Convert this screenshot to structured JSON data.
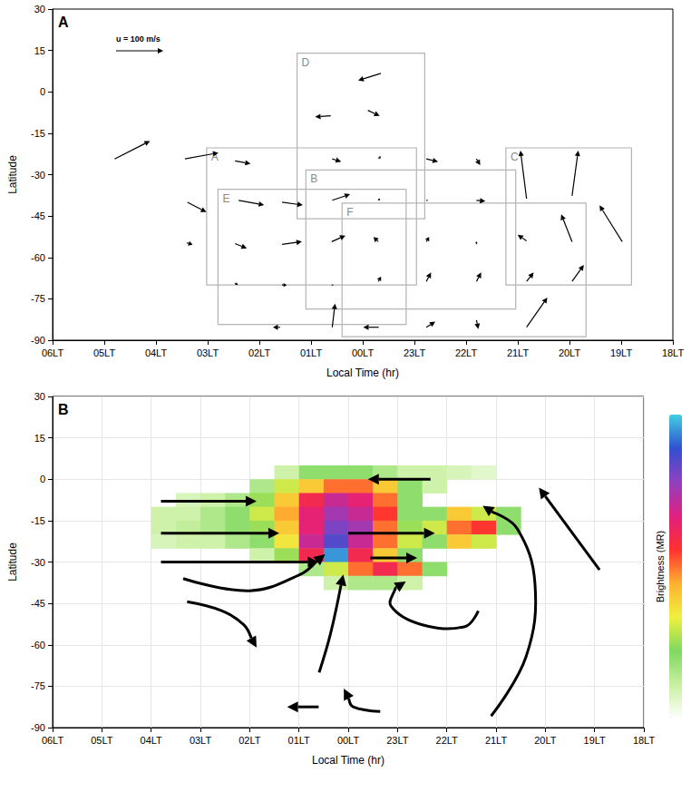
{
  "chart_data": [
    {
      "type": "vector",
      "panel": "A",
      "x_label": "Local Time (hr)",
      "y_label": "Latitude",
      "grid": false,
      "xlim": [
        18,
        30
      ],
      "xticks": [
        {
          "value": 30,
          "label": "06LT"
        },
        {
          "value": 29,
          "label": "05LT"
        },
        {
          "value": 28,
          "label": "04LT"
        },
        {
          "value": 27,
          "label": "03LT"
        },
        {
          "value": 26,
          "label": "02LT"
        },
        {
          "value": 25,
          "label": "01LT"
        },
        {
          "value": 24,
          "label": "00LT"
        },
        {
          "value": 23,
          "label": "23LT"
        },
        {
          "value": 22,
          "label": "22LT"
        },
        {
          "value": 21,
          "label": "21LT"
        },
        {
          "value": 20,
          "label": "20LT"
        },
        {
          "value": 19,
          "label": "19LT"
        },
        {
          "value": 18,
          "label": "18LT"
        }
      ],
      "ylim": [
        -90,
        30
      ],
      "yticks": [
        -90,
        -75,
        -60,
        -45,
        -30,
        -15,
        0,
        15,
        30
      ],
      "scale": {
        "label": "u = 100 m/s",
        "value": 100
      },
      "boxes": [
        {
          "label": "A",
          "x": [
            27.02,
            22.96
          ],
          "lat": [
            -70,
            -20.3
          ]
        },
        {
          "label": "B",
          "x": [
            25.1,
            21.04
          ],
          "lat": [
            -78.7,
            -28.3
          ]
        },
        {
          "label": "C",
          "x": [
            21.23,
            18.8
          ],
          "lat": [
            -70,
            -20.3
          ]
        },
        {
          "label": "D",
          "x": [
            25.27,
            22.8
          ],
          "lat": [
            -46,
            14
          ]
        },
        {
          "label": "E",
          "x": [
            26.8,
            23.16
          ],
          "lat": [
            -84.3,
            -35.3
          ]
        },
        {
          "label": "F",
          "x": [
            24.4,
            19.68
          ],
          "lat": [
            -88.7,
            -40.3
          ]
        }
      ],
      "vectors": [
        [
          28.8,
          -24.3,
          75,
          38
        ],
        [
          27.44,
          -24.3,
          71,
          13
        ],
        [
          27.39,
          -40,
          40,
          -21
        ],
        [
          27.4,
          -54.7,
          12,
          -4
        ],
        [
          26.47,
          -25,
          33,
          -6
        ],
        [
          26.4,
          -39.3,
          54,
          -10
        ],
        [
          26.47,
          -55,
          25,
          -10
        ],
        [
          26.47,
          -69.3,
          6,
          -4
        ],
        [
          25.6,
          -85.3,
          -15,
          0
        ],
        [
          25.56,
          -40,
          44,
          -6
        ],
        [
          25.56,
          -55.3,
          42,
          6
        ],
        [
          25.56,
          -70,
          10,
          0
        ],
        [
          24.59,
          -24.3,
          19,
          -6
        ],
        [
          24.59,
          -39.3,
          38,
          13
        ],
        [
          24.6,
          -54.3,
          29,
          13
        ],
        [
          24.6,
          -70,
          4,
          0
        ],
        [
          24.59,
          -85.3,
          6,
          50
        ],
        [
          24.62,
          -8.7,
          -33,
          -2
        ],
        [
          23.65,
          6.7,
          -48,
          -15
        ],
        [
          23.9,
          -6.7,
          25,
          -12
        ],
        [
          23.69,
          -24.3,
          4,
          6
        ],
        [
          23.7,
          -39.3,
          4,
          4
        ],
        [
          23.7,
          -54.3,
          -10,
          10
        ],
        [
          23.7,
          -68.7,
          6,
          10
        ],
        [
          23.69,
          -85.3,
          -33,
          0
        ],
        [
          22.77,
          -24.3,
          25,
          -6
        ],
        [
          22.77,
          -39.3,
          4,
          0
        ],
        [
          22.77,
          -54.3,
          6,
          10
        ],
        [
          22.77,
          -68.7,
          10,
          19
        ],
        [
          22.77,
          -85.3,
          19,
          12
        ],
        [
          21.8,
          -24.3,
          8,
          -13
        ],
        [
          21.8,
          -39.3,
          19,
          -2
        ],
        [
          21.8,
          -54.3,
          0,
          -6
        ],
        [
          21.8,
          -68.7,
          10,
          19
        ],
        [
          21.8,
          -82.7,
          4,
          -19
        ],
        [
          20.83,
          -38.7,
          -13,
          102
        ],
        [
          20.83,
          -54,
          -19,
          13
        ],
        [
          20.83,
          -68.7,
          15,
          19
        ],
        [
          20.83,
          -85.3,
          44,
          63
        ],
        [
          19.95,
          -37.7,
          13,
          96
        ],
        [
          19.95,
          -54.3,
          -23,
          58
        ],
        [
          19.95,
          -68.7,
          25,
          35
        ],
        [
          18.98,
          -54.3,
          -48,
          77
        ]
      ]
    },
    {
      "type": "heatmap",
      "panel": "B",
      "x_label": "Local Time (hr)",
      "y_label": "Latitude",
      "grid": true,
      "xlim": [
        18,
        30
      ],
      "xticks": [
        {
          "value": 30,
          "label": "06LT"
        },
        {
          "value": 29,
          "label": "05LT"
        },
        {
          "value": 28,
          "label": "04LT"
        },
        {
          "value": 27,
          "label": "03LT"
        },
        {
          "value": 26,
          "label": "02LT"
        },
        {
          "value": 25,
          "label": "01LT"
        },
        {
          "value": 24,
          "label": "00LT"
        },
        {
          "value": 23,
          "label": "23LT"
        },
        {
          "value": 22,
          "label": "22LT"
        },
        {
          "value": 21,
          "label": "21LT"
        },
        {
          "value": 20,
          "label": "20LT"
        },
        {
          "value": 19,
          "label": "19LT"
        },
        {
          "value": 18,
          "label": "18LT"
        }
      ],
      "ylim": [
        -90,
        30
      ],
      "yticks": [
        -90,
        -75,
        -60,
        -45,
        -30,
        -15,
        0,
        15,
        30
      ],
      "colorbar": {
        "label": "Brightness (MR)",
        "range": [
          0,
          10
        ]
      },
      "cells": {
        "x": [
          27.75,
          27.25,
          26.75,
          26.25,
          25.75,
          25.25,
          24.75,
          24.25,
          23.75,
          23.25,
          22.75,
          22.25,
          21.75,
          21.25,
          20.75
        ],
        "lat": [
          2.5,
          -2.5,
          -7.5,
          -12.5,
          -17.5,
          -22.5,
          -27.5,
          -32.5,
          -37.5
        ],
        "values": [
          [
            null,
            null,
            null,
            null,
            null,
            1,
            2,
            2,
            2,
            1.5,
            1,
            1,
            0.8,
            0.6,
            null
          ],
          [
            null,
            null,
            null,
            null,
            1.5,
            3,
            4,
            5,
            5,
            4,
            2,
            1,
            null,
            null,
            null
          ],
          [
            null,
            0.8,
            1,
            1.5,
            2.5,
            4,
            6,
            7,
            6.5,
            5,
            2,
            null,
            null,
            null,
            null
          ],
          [
            1,
            1,
            1.5,
            2,
            3,
            4.5,
            6.5,
            7.5,
            7,
            5.5,
            2,
            2,
            4,
            3,
            2
          ],
          [
            1,
            1.2,
            1.5,
            2,
            2.5,
            4,
            6.5,
            8,
            7.5,
            5,
            2.5,
            3,
            5,
            5.5,
            2
          ],
          [
            0.8,
            1,
            1,
            1.5,
            2,
            3.5,
            7,
            8.5,
            7,
            5,
            3,
            2,
            4,
            3,
            null
          ],
          [
            null,
            null,
            null,
            null,
            1,
            2.5,
            6,
            9.5,
            6,
            4,
            2,
            null,
            null,
            null,
            null
          ],
          [
            null,
            null,
            null,
            null,
            null,
            null,
            1.5,
            3,
            5,
            6,
            5,
            2,
            null,
            null,
            null
          ],
          [
            null,
            null,
            null,
            null,
            null,
            null,
            null,
            1,
            1.5,
            1.5,
            1,
            null,
            null,
            null,
            null
          ]
        ]
      },
      "flows": [
        [
          [
            27.8,
            -8
          ],
          [
            25.86,
            -8
          ]
        ],
        [
          [
            27.8,
            -19.6
          ],
          [
            25.4,
            -19.6
          ]
        ],
        [
          [
            27.8,
            -30
          ],
          [
            24.6,
            -30
          ]
        ],
        [
          [
            22.33,
            0
          ],
          [
            23.6,
            0
          ]
        ],
        [
          [
            24.0,
            -19.6
          ],
          [
            22.24,
            -19.6
          ]
        ],
        [
          [
            23.55,
            -28.5
          ],
          [
            22.6,
            -28.5
          ]
        ],
        [
          [
            24.6,
            -82.5
          ],
          [
            25.24,
            -82.5
          ]
        ],
        [
          [
            27.35,
            -36
          ],
          [
            26.0,
            -40.4
          ],
          [
            24.97,
            -34.5
          ],
          [
            24.47,
            -27.2
          ]
        ],
        [
          [
            27.27,
            -44.4
          ],
          [
            26.56,
            -47.7
          ],
          [
            26.12,
            -52.7
          ],
          [
            25.86,
            -61
          ]
        ],
        [
          [
            24.59,
            -70
          ],
          [
            24.36,
            -56
          ],
          [
            24.1,
            -34.5
          ]
        ],
        [
          [
            23.35,
            -84.2
          ],
          [
            23.9,
            -82.5
          ],
          [
            24.09,
            -75.9
          ]
        ],
        [
          [
            21.36,
            -47.7
          ],
          [
            21.63,
            -53.4
          ],
          [
            22.51,
            -52.7
          ],
          [
            23.13,
            -46
          ],
          [
            23.04,
            -39.4
          ],
          [
            22.83,
            -37.1
          ]
        ],
        [
          [
            21.1,
            -85.8
          ],
          [
            20.39,
            -64.3
          ],
          [
            20.21,
            -37.8
          ],
          [
            20.57,
            -17.9
          ],
          [
            21.27,
            -9.6
          ]
        ],
        [
          [
            18.9,
            -32.8
          ],
          [
            20.13,
            -3
          ]
        ]
      ]
    }
  ]
}
